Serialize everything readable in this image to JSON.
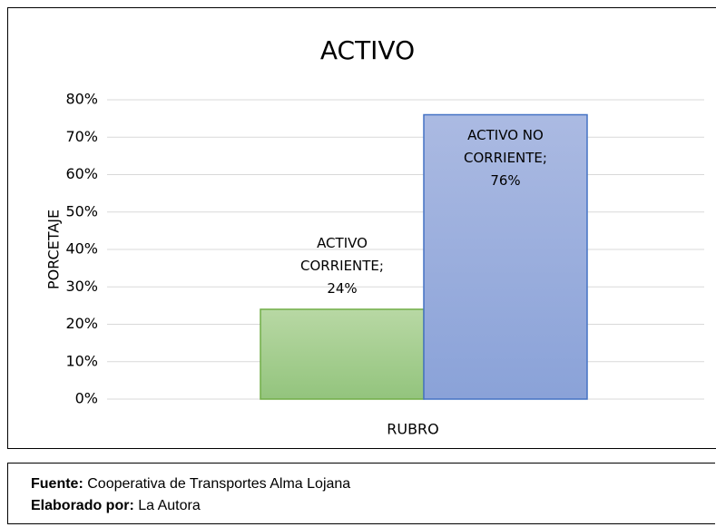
{
  "chart_data": {
    "type": "bar",
    "title": "ACTIVO",
    "x_label": "RUBRO",
    "y_label": "PORCETAJE",
    "categories": [
      null
    ],
    "series": [
      {
        "name": "ACTIVO CORRIENTE",
        "color": "#93c47d",
        "border": "#70ad47",
        "values": [
          24
        ],
        "value_labels": [
          "24%"
        ]
      },
      {
        "name": "ACTIVO NO CORRIENTE",
        "color": "#8aa2d8",
        "border": "#4472c4",
        "values": [
          76
        ],
        "value_labels": [
          "76%"
        ]
      }
    ],
    "label_separator": ";",
    "ylim": [
      0,
      80
    ],
    "yticks": [
      {
        "value": 0,
        "label": "0%"
      },
      {
        "value": 10,
        "label": "10%"
      },
      {
        "value": 20,
        "label": "20%"
      },
      {
        "value": 30,
        "label": "30%"
      },
      {
        "value": 40,
        "label": "40%"
      },
      {
        "value": 50,
        "label": "50%"
      },
      {
        "value": 60,
        "label": "60%"
      },
      {
        "value": 70,
        "label": "70%"
      },
      {
        "value": 80,
        "label": "80%"
      }
    ],
    "grid": true
  },
  "footer": {
    "source_label": "Fuente:",
    "source": "Cooperativa de Transportes Alma Lojana",
    "author_label": "Elaborado por:",
    "author": "La Autora"
  }
}
